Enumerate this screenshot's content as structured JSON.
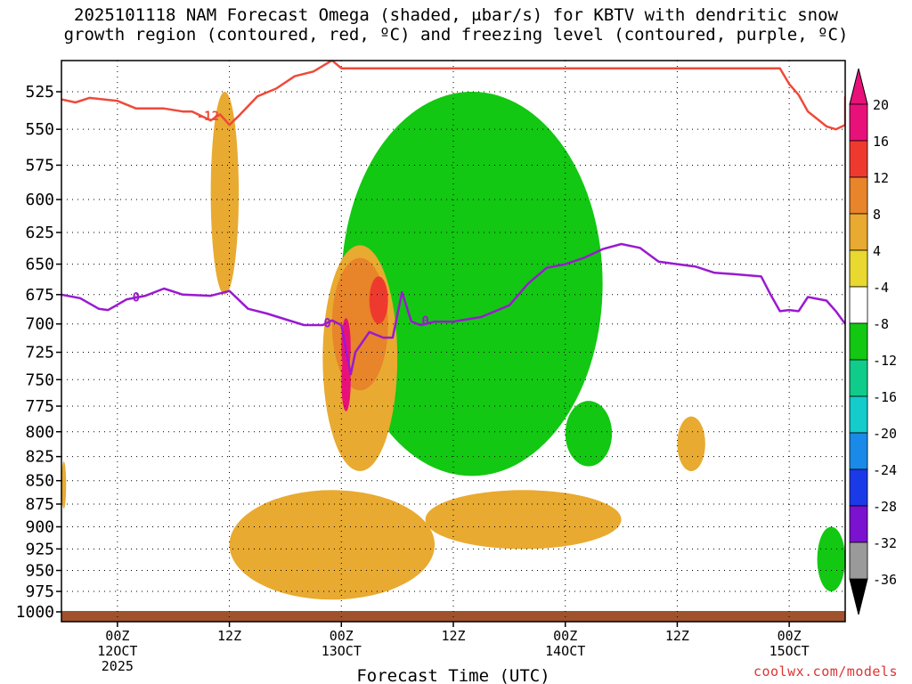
{
  "title_line1": "2025101118 NAM Forecast Omega (shaded, μbar/s) for KBTV with dendritic snow",
  "title_line2": "growth region (contoured, red, ºC) and freezing level (contoured, purple, ºC)",
  "watermark": "coolwx.com/models",
  "chart_data": {
    "type": "time-height cross section",
    "title": "2025101118 NAM Forecast Omega (shaded, μbar/s) for KBTV with dendritic snow growth region (contoured, red, ºC) and freezing level (contoured, purple, ºC)",
    "xlabel": "Forecast Time (UTC)",
    "ylabel": "",
    "y_ticks": [
      525,
      550,
      575,
      600,
      625,
      650,
      675,
      700,
      725,
      750,
      775,
      800,
      825,
      850,
      875,
      900,
      925,
      950,
      975,
      1000
    ],
    "y_unit": "hPa",
    "y_reversed": true,
    "x_ticks": [
      {
        "hour": 6,
        "label": "00Z",
        "sub": "12OCT",
        "sub2": "2025"
      },
      {
        "hour": 18,
        "label": "12Z",
        "sub": "",
        "sub2": ""
      },
      {
        "hour": 30,
        "label": "00Z",
        "sub": "13OCT",
        "sub2": ""
      },
      {
        "hour": 42,
        "label": "12Z",
        "sub": "",
        "sub2": ""
      },
      {
        "hour": 54,
        "label": "00Z",
        "sub": "14OCT",
        "sub2": ""
      },
      {
        "hour": 66,
        "label": "12Z",
        "sub": "",
        "sub2": ""
      },
      {
        "hour": 78,
        "label": "00Z",
        "sub": "15OCT",
        "sub2": ""
      }
    ],
    "x_range_hours": [
      0,
      84
    ],
    "grid": true,
    "colorbar": {
      "levels": [
        20,
        16,
        12,
        8,
        4,
        -4,
        -8,
        -12,
        -16,
        -20,
        -24,
        -28,
        -32,
        -36
      ],
      "colors": [
        "#e8117a",
        "#ee3a2e",
        "#e8842a",
        "#e8aa30",
        "#e8d830",
        "#ffffff",
        "#12c812",
        "#10cc8a",
        "#14cccc",
        "#1a8ae8",
        "#1a3ae8",
        "#7a12d0",
        "#9a9a9a"
      ],
      "top_arrow_color": "#e8117a",
      "bottom_arrow_color": "#000000"
    },
    "contours": [
      {
        "name": "dendritic growth -12C",
        "color": "#ee4a3a",
        "label": "-12",
        "points": [
          [
            0,
            530
          ],
          [
            1.5,
            532
          ],
          [
            3,
            529
          ],
          [
            6,
            531
          ],
          [
            8,
            536
          ],
          [
            11,
            536
          ],
          [
            13,
            538
          ],
          [
            14,
            538
          ],
          [
            16,
            544
          ],
          [
            17,
            540
          ],
          [
            18,
            547
          ],
          [
            19,
            541
          ],
          [
            21,
            528
          ],
          [
            23,
            523
          ],
          [
            25,
            515
          ],
          [
            27,
            512
          ],
          [
            29,
            505
          ],
          [
            30,
            510
          ],
          [
            77,
            510
          ],
          [
            78,
            520
          ],
          [
            79,
            527
          ],
          [
            80,
            538
          ],
          [
            82,
            548
          ],
          [
            83,
            550
          ],
          [
            84,
            547
          ],
          [
            84,
            528
          ]
        ]
      },
      {
        "name": "freezing level 0C",
        "color": "#9a1ad0",
        "label": "0",
        "points": [
          [
            0,
            675
          ],
          [
            2,
            678
          ],
          [
            4,
            687
          ],
          [
            5,
            688
          ],
          [
            7,
            679
          ],
          [
            9,
            676
          ],
          [
            11,
            670
          ],
          [
            13,
            675
          ],
          [
            16,
            676
          ],
          [
            18,
            672
          ],
          [
            20,
            687
          ],
          [
            22,
            691
          ],
          [
            24,
            696
          ],
          [
            26,
            701
          ],
          [
            28,
            701
          ],
          [
            29,
            697
          ],
          [
            30,
            701
          ],
          [
            31,
            745
          ],
          [
            31.5,
            725
          ],
          [
            33,
            707
          ],
          [
            34.5,
            712
          ],
          [
            35.5,
            712
          ],
          [
            36.5,
            673
          ],
          [
            37.5,
            698
          ],
          [
            38.5,
            701
          ],
          [
            40,
            698
          ],
          [
            42,
            698
          ],
          [
            45,
            694
          ],
          [
            48,
            684
          ],
          [
            50,
            666
          ],
          [
            52,
            653
          ],
          [
            54,
            650
          ],
          [
            56,
            645
          ],
          [
            58,
            638
          ],
          [
            60,
            634
          ],
          [
            62,
            637
          ],
          [
            64,
            648
          ],
          [
            66,
            650
          ],
          [
            68,
            652
          ],
          [
            70,
            657
          ],
          [
            72,
            658
          ],
          [
            75,
            660
          ],
          [
            76,
            675
          ],
          [
            77,
            689
          ],
          [
            78,
            688
          ],
          [
            79,
            689
          ],
          [
            80,
            677
          ],
          [
            82,
            680
          ],
          [
            83,
            689
          ],
          [
            84,
            700
          ]
        ]
      }
    ],
    "omega_regions": [
      {
        "level": -4,
        "hours": [
          30,
          58
        ],
        "p": [
          525,
          845
        ]
      },
      {
        "level": 4,
        "hours": [
          16,
          19
        ],
        "p": [
          525,
          675
        ]
      },
      {
        "level": 4,
        "hours": [
          28,
          36
        ],
        "p": [
          635,
          840
        ]
      },
      {
        "level": 4,
        "hours": [
          18,
          40
        ],
        "p": [
          860,
          985
        ]
      },
      {
        "level": 4,
        "hours": [
          39,
          60
        ],
        "p": [
          860,
          925
        ]
      },
      {
        "level": 8,
        "hours": [
          29,
          35
        ],
        "p": [
          645,
          760
        ]
      },
      {
        "level": 12,
        "hours": [
          33,
          35
        ],
        "p": [
          660,
          700
        ]
      },
      {
        "level": 16,
        "hours": [
          30,
          31
        ],
        "p": [
          695,
          745
        ]
      },
      {
        "level": 20,
        "hours": [
          30,
          31
        ],
        "p": [
          725,
          780
        ]
      },
      {
        "level": -4,
        "hours": [
          54,
          59
        ],
        "p": [
          770,
          835
        ]
      },
      {
        "level": -4,
        "hours": [
          81,
          84
        ],
        "p": [
          900,
          975
        ]
      },
      {
        "level": 4,
        "hours": [
          66,
          69
        ],
        "p": [
          785,
          840
        ]
      },
      {
        "level": 4,
        "hours": [
          0,
          0.5
        ],
        "p": [
          830,
          880
        ]
      }
    ]
  }
}
